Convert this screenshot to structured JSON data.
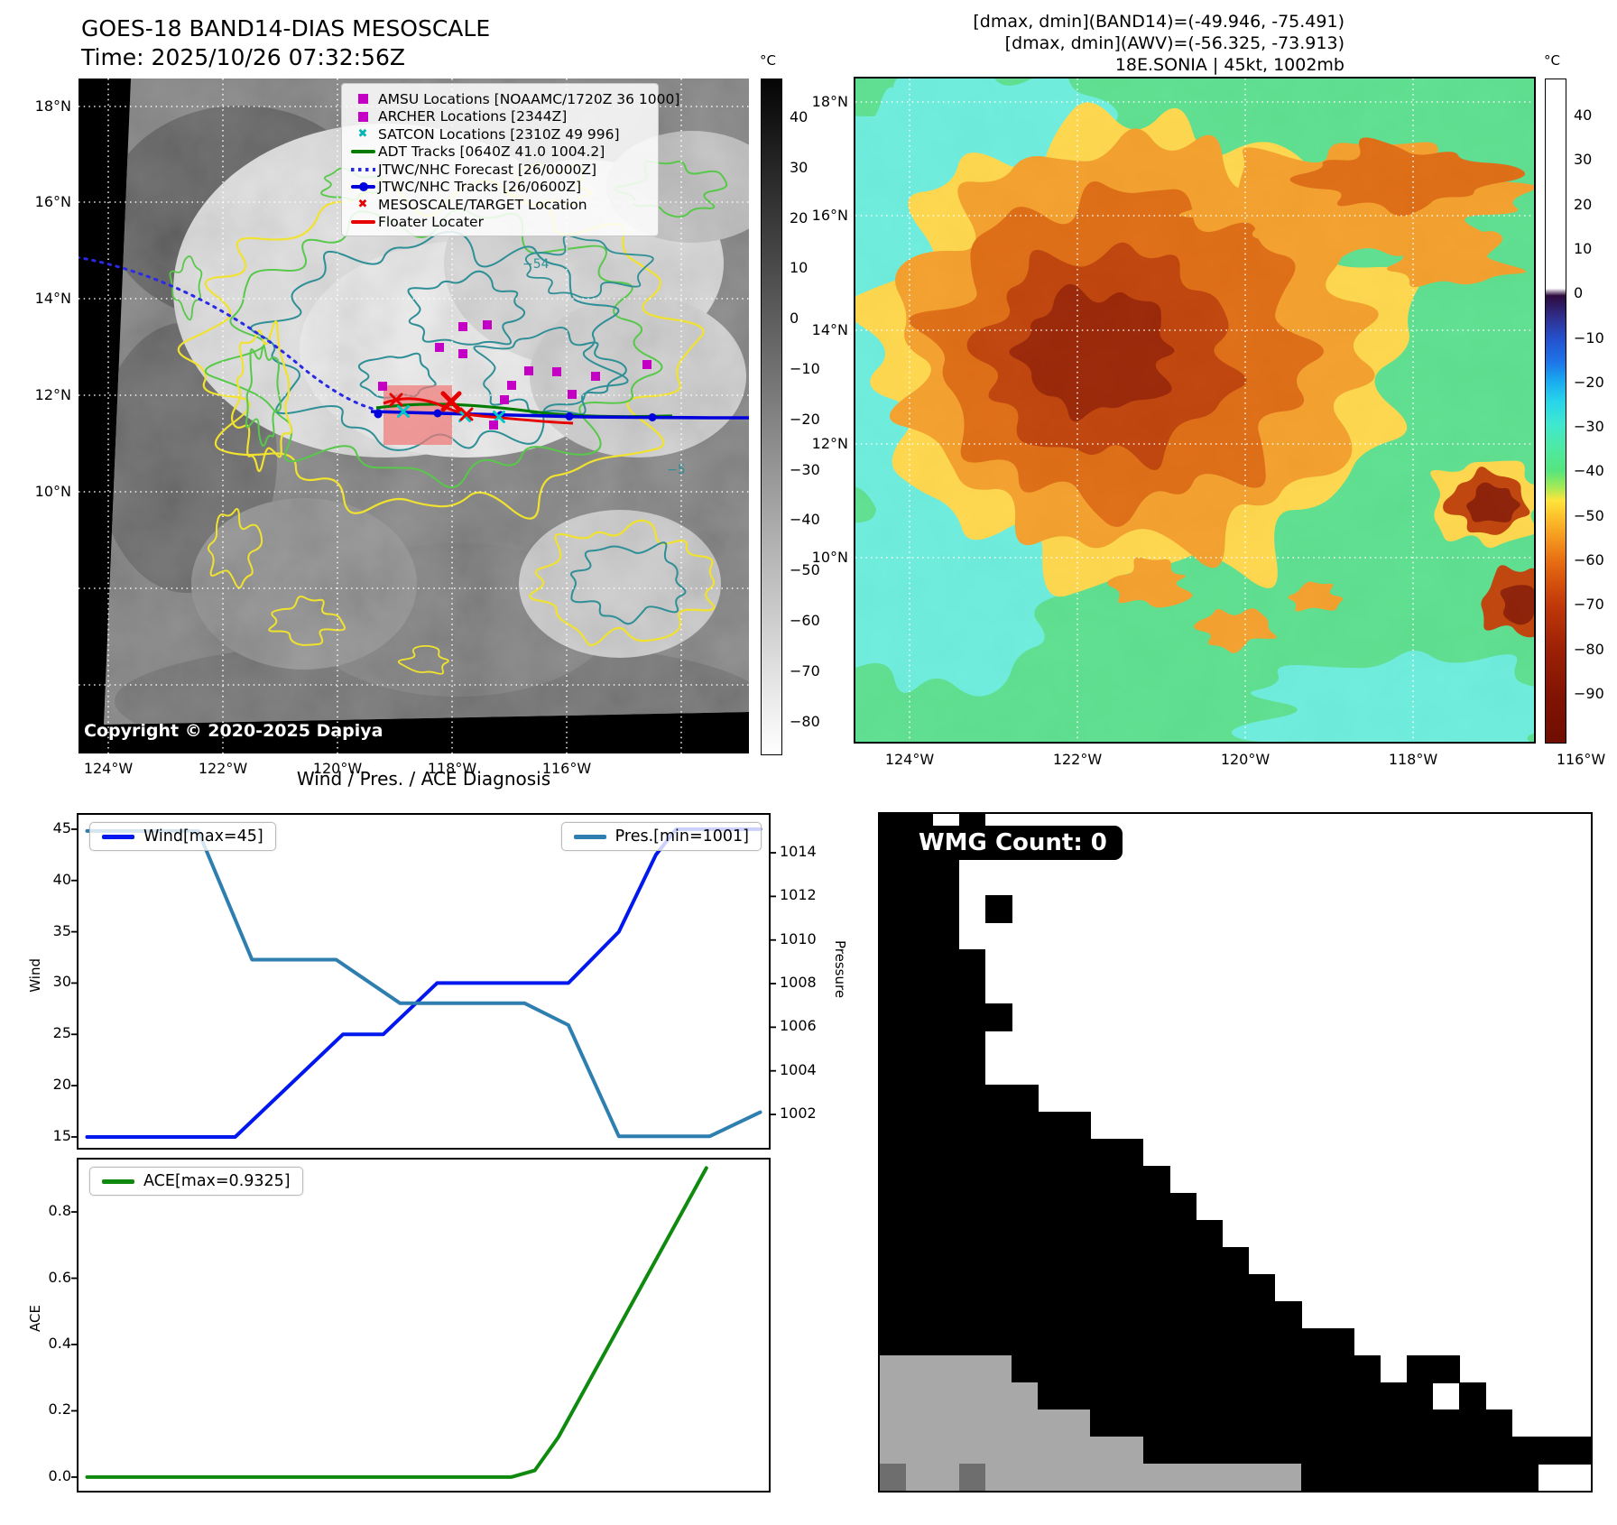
{
  "header_left": {
    "title": "GOES-18 BAND14-DIAS MESOSCALE",
    "time": "Time: 2025/10/26 07:32:56Z"
  },
  "header_right": {
    "line1": "[dmax, dmin](BAND14)=(-49.946, -75.491)",
    "line2": "[dmax, dmin](AWV)=(-56.325, -73.913)",
    "line3": "18E.SONIA | 45kt, 1002mb"
  },
  "band14_map": {
    "legend_items": [
      {
        "label": "AMSU Locations [NOAAMC/1720Z 36 1000]",
        "marker": "square",
        "color": "#c400c4"
      },
      {
        "label": "ARCHER Locations [2344Z]",
        "marker": "square",
        "color": "#c400c4"
      },
      {
        "label": "SATCON Locations [2310Z 49 996]",
        "marker": "x",
        "color": "#00b4b4"
      },
      {
        "label": "ADT Tracks [0640Z 41.0 1004.2]",
        "marker": "line",
        "color": "#007d00"
      },
      {
        "label": "JTWC/NHC Forecast [26/0000Z]",
        "marker": "dotted",
        "color": "#2a2ae6"
      },
      {
        "label": "JTWC/NHC Tracks [26/0600Z]",
        "marker": "line-dot",
        "color": "#0000dd"
      },
      {
        "label": "MESOSCALE/TARGET Location",
        "marker": "x",
        "color": "#e60000"
      },
      {
        "label": "Floater Locater",
        "marker": "line",
        "color": "#e60000"
      }
    ],
    "lat_ticks": [
      "18°N",
      "16°N",
      "14°N",
      "12°N",
      "10°N"
    ],
    "lon_ticks": [
      "124°W",
      "122°W",
      "120°W",
      "118°W",
      "116°W"
    ],
    "colorbar": {
      "unit": "°C",
      "ticks": [
        "40",
        "30",
        "20",
        "10",
        "0",
        "−10",
        "−20",
        "−30",
        "−40",
        "−50",
        "−60",
        "−70",
        "−80"
      ],
      "stops": [
        [
          0,
          "#050505"
        ],
        [
          100,
          "#ffffff"
        ]
      ]
    },
    "contour_labels": [
      "−54",
      "−5"
    ],
    "copyright": "Copyright © 2020-2025 Dapiya"
  },
  "awv_map": {
    "lat_ticks": [
      "18°N",
      "16°N",
      "14°N",
      "12°N",
      "10°N"
    ],
    "lon_ticks": [
      "124°W",
      "122°W",
      "120°W",
      "118°W",
      "116°W"
    ],
    "colorbar": {
      "unit": "°C",
      "ticks": [
        "40",
        "30",
        "20",
        "10",
        "0",
        "−10",
        "−20",
        "−30",
        "−40",
        "−50",
        "−60",
        "−70",
        "−80",
        "−90"
      ],
      "stops": [
        [
          0,
          "#ffffff"
        ],
        [
          31.5,
          "#ffffff"
        ],
        [
          32.6,
          "#2d0a3e"
        ],
        [
          36,
          "#303090"
        ],
        [
          39,
          "#2450cc"
        ],
        [
          42.5,
          "#1e73e8"
        ],
        [
          45.5,
          "#19aaf0"
        ],
        [
          48.5,
          "#27d4ea"
        ],
        [
          52,
          "#3fe8cf"
        ],
        [
          55.5,
          "#4ee9a4"
        ],
        [
          59,
          "#55e57e"
        ],
        [
          61.5,
          "#a4ea55"
        ],
        [
          63.5,
          "#ffe43c"
        ],
        [
          66,
          "#fdc02a"
        ],
        [
          69,
          "#f59a20"
        ],
        [
          72.5,
          "#e86f12"
        ],
        [
          76,
          "#d4500c"
        ],
        [
          79.5,
          "#bf370a"
        ],
        [
          86,
          "#9c2105"
        ],
        [
          93,
          "#811303"
        ],
        [
          100,
          "#6f0e02"
        ]
      ]
    }
  },
  "wmg": {
    "label": "WMG Count: 0",
    "cell_colors": {
      "B": "#000000",
      "G": "#a8a8a8",
      "D": "#6e6e6e"
    },
    "grid": [
      "BBWBWWWWWWWWWWWWWWWWWWWWWWW",
      "BBBWWWWWWWWWWWWWWWWWWWWWWWW",
      "BBBWWWWWWWWWWWWWWWWWWWWWWWW",
      "BBBWBWWWWWWWWWWWWWWWWWWWWWW",
      "BBBWWWWWWWWWWWWWWWWWWWWWWWW",
      "BBBBWWWWWWWWWWWWWWWWWWWWWWW",
      "BBBBWWWWWWWWWWWWWWWWWWWWWWW",
      "BBBBBWWWWWWWWWWWWWWWWWWWWWW",
      "BBBBWWWWWWWWWWWWWWWWWWWWWWW",
      "BBBBWWWWWWWWWWWWWWWWWWWWWWW",
      "BBBBBBWWWWWWWWWWWWWWWWWWWWW",
      "BBBBBBBBWWWWWWWWWWWWWWWWWWW",
      "BBBBBBBBBBWWWWWWWWWWWWWWWWW",
      "BBBBBBBBBBBWWWWWWWWWWWWWWWW",
      "BBBBBBBBBBBBWWWWWWWWWWWWWWW",
      "BBBBBBBBBBBBBWWWWWWWWWWWWWW",
      "BBBBBBBBBBBBBBWWWWWWWWWWWWW",
      "BBBBBBBBBBBBBBBWWWWWWWWWWWW",
      "BBBBBBBBBBBBBBBBWWWWWWWWWWW",
      "BBBBBBBBBBBBBBBBBBWWWWWWWWW",
      "GGGGGBBBBBBBBBBBBBBWBBWWWWW",
      "GGGGGGBBBBBBBBBBBBBBBWBWWWW",
      "GGGGGGGGBBBBBBBBBBBBBBBBWWW",
      "GGGGGGGGGGBBBBBBBBBBBBBBBBB",
      "DGGDGGGGGGGGGGGGBBBBBBBBBWW"
    ]
  },
  "chart_data": [
    {
      "type": "line",
      "title": "Wind / Pres. / ACE Diagnosis",
      "ylabel": "Wind",
      "ylabel_right": "Pressure",
      "ylim": [
        13.94,
        46.4
      ],
      "ylim_right": [
        1000.47,
        1015.74
      ],
      "yticks": [
        15,
        20,
        25,
        30,
        35,
        40,
        45
      ],
      "yticks_right": [
        1002,
        1004,
        1006,
        1008,
        1010,
        1012,
        1014
      ],
      "xlim": [
        0,
        1
      ],
      "grid": false,
      "legend_position": "upper-left and upper-right",
      "series": [
        {
          "name": "Wind[max=45]",
          "axis": "left",
          "color": "#0018ee",
          "points": [
            [
              0,
              15
            ],
            [
              0.22,
              15
            ],
            [
              0.38,
              25
            ],
            [
              0.44,
              25
            ],
            [
              0.52,
              30
            ],
            [
              0.715,
              30
            ],
            [
              0.79,
              35
            ],
            [
              0.845,
              42.5
            ],
            [
              0.875,
              45
            ],
            [
              1,
              45
            ]
          ]
        },
        {
          "name": "Pres.[min=1001]",
          "axis": "right",
          "color": "#2e7eb0",
          "points": [
            [
              0,
              1015
            ],
            [
              0.165,
              1015
            ],
            [
              0.245,
              1009.1
            ],
            [
              0.37,
              1009.1
            ],
            [
              0.465,
              1007.1
            ],
            [
              0.65,
              1007.1
            ],
            [
              0.715,
              1006.1
            ],
            [
              0.79,
              1001
            ],
            [
              0.925,
              1001
            ],
            [
              1,
              1002.1
            ]
          ]
        }
      ]
    },
    {
      "type": "line",
      "ylabel": "ACE",
      "ylim": [
        -0.041,
        0.958
      ],
      "yticks": [
        "0.0",
        "0.2",
        "0.4",
        "0.6",
        "0.8"
      ],
      "xlim": [
        0,
        1
      ],
      "grid": false,
      "legend_position": "upper-left",
      "series": [
        {
          "name": "ACE[max=0.9325]",
          "color": "#0f8a0f",
          "points": [
            [
              0,
              0
            ],
            [
              0.63,
              0
            ],
            [
              0.665,
              0.02
            ],
            [
              0.7,
              0.12
            ],
            [
              0.92,
              0.9325
            ]
          ]
        }
      ]
    }
  ]
}
